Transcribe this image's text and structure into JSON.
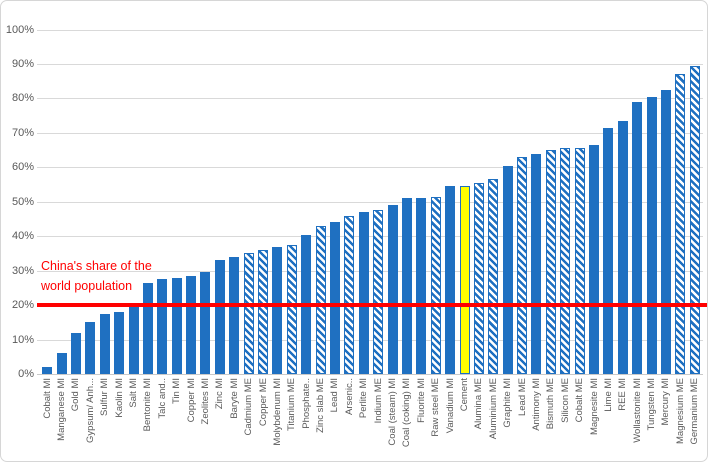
{
  "colors": {
    "bar_blue": "#1f70c1",
    "highlight_yellow": "#ffff00",
    "reference_red": "#ff0000",
    "gridline": "#d9d9d9",
    "axis": "#c9c9c9",
    "tick_text": "#595959"
  },
  "annotation": {
    "line1": "China's share of the",
    "line2": "world population"
  },
  "chart_data": {
    "type": "bar",
    "title": "",
    "xlabel": "",
    "ylabel": "",
    "ylim": [
      0,
      100
    ],
    "grid": true,
    "yticks": [
      "0%",
      "10%",
      "20%",
      "30%",
      "40%",
      "50%",
      "60%",
      "70%",
      "80%",
      "90%",
      "100%"
    ],
    "reference_line": {
      "value": 20,
      "label": "China's share of the world population"
    },
    "bars": [
      {
        "label": "Cobalt MI",
        "value": 2,
        "style": "solid"
      },
      {
        "label": "Manganese MI",
        "value": 6,
        "style": "solid"
      },
      {
        "label": "Gold MI",
        "value": 12,
        "style": "solid"
      },
      {
        "label": "Gypsum/ Anh...",
        "value": 15,
        "style": "solid"
      },
      {
        "label": "Sulfur MI",
        "value": 17.5,
        "style": "solid"
      },
      {
        "label": "Kaolin MI",
        "value": 18,
        "style": "solid"
      },
      {
        "label": "Salt MI",
        "value": 20,
        "style": "solid"
      },
      {
        "label": "Bentonite MI",
        "value": 26.5,
        "style": "solid"
      },
      {
        "label": "Talc and..",
        "value": 27.5,
        "style": "solid"
      },
      {
        "label": "Tin MI",
        "value": 28,
        "style": "solid"
      },
      {
        "label": "Copper MI",
        "value": 28.5,
        "style": "solid"
      },
      {
        "label": "Zeolites MI",
        "value": 29.5,
        "style": "solid"
      },
      {
        "label": "Zinc MI",
        "value": 33,
        "style": "solid"
      },
      {
        "label": "Baryte MI",
        "value": 34,
        "style": "solid"
      },
      {
        "label": "Cadmium ME",
        "value": 35,
        "style": "hatched"
      },
      {
        "label": "Copper ME",
        "value": 36,
        "style": "hatched"
      },
      {
        "label": "Molybdenum MI",
        "value": 37,
        "style": "solid"
      },
      {
        "label": "Titanium ME",
        "value": 37.5,
        "style": "hatched"
      },
      {
        "label": "Phosphate..",
        "value": 40.5,
        "style": "solid"
      },
      {
        "label": "Zinc slab ME",
        "value": 43,
        "style": "hatched"
      },
      {
        "label": "Lead MI",
        "value": 44,
        "style": "solid"
      },
      {
        "label": "Arsenic..",
        "value": 46,
        "style": "hatched"
      },
      {
        "label": "Perlite MI",
        "value": 47,
        "style": "solid"
      },
      {
        "label": "Indium ME",
        "value": 47.5,
        "style": "hatched"
      },
      {
        "label": "Coal (steam) MI",
        "value": 49,
        "style": "solid"
      },
      {
        "label": "Coal (coking) MI",
        "value": 51,
        "style": "solid"
      },
      {
        "label": "Fluorite MI",
        "value": 51,
        "style": "solid"
      },
      {
        "label": "Raw steel ME",
        "value": 51.5,
        "style": "hatched"
      },
      {
        "label": "Vanadium MI",
        "value": 54.5,
        "style": "solid"
      },
      {
        "label": "Cement",
        "value": 54.5,
        "style": "highlight"
      },
      {
        "label": "Alumina ME",
        "value": 55.5,
        "style": "hatched"
      },
      {
        "label": "Aluminium ME",
        "value": 56.5,
        "style": "hatched"
      },
      {
        "label": "Graphite MI",
        "value": 60.5,
        "style": "solid"
      },
      {
        "label": "Lead ME",
        "value": 63,
        "style": "hatched"
      },
      {
        "label": "Antimony MI",
        "value": 64,
        "style": "solid"
      },
      {
        "label": "Bismuth ME",
        "value": 65,
        "style": "hatched"
      },
      {
        "label": "Silicon ME",
        "value": 65.5,
        "style": "hatched"
      },
      {
        "label": "Cobalt ME",
        "value": 65.5,
        "style": "hatched"
      },
      {
        "label": "Magnesite MI",
        "value": 66.5,
        "style": "solid"
      },
      {
        "label": "Lime MI",
        "value": 71.5,
        "style": "solid"
      },
      {
        "label": "REE MI",
        "value": 73.5,
        "style": "solid"
      },
      {
        "label": "Wollastonite MI",
        "value": 79,
        "style": "solid"
      },
      {
        "label": "Tungsten MI",
        "value": 80.5,
        "style": "solid"
      },
      {
        "label": "Mercury MI",
        "value": 82.5,
        "style": "solid"
      },
      {
        "label": "Magnesium ME",
        "value": 87,
        "style": "hatched"
      },
      {
        "label": "Germanium ME",
        "value": 89.5,
        "style": "hatched"
      }
    ]
  }
}
